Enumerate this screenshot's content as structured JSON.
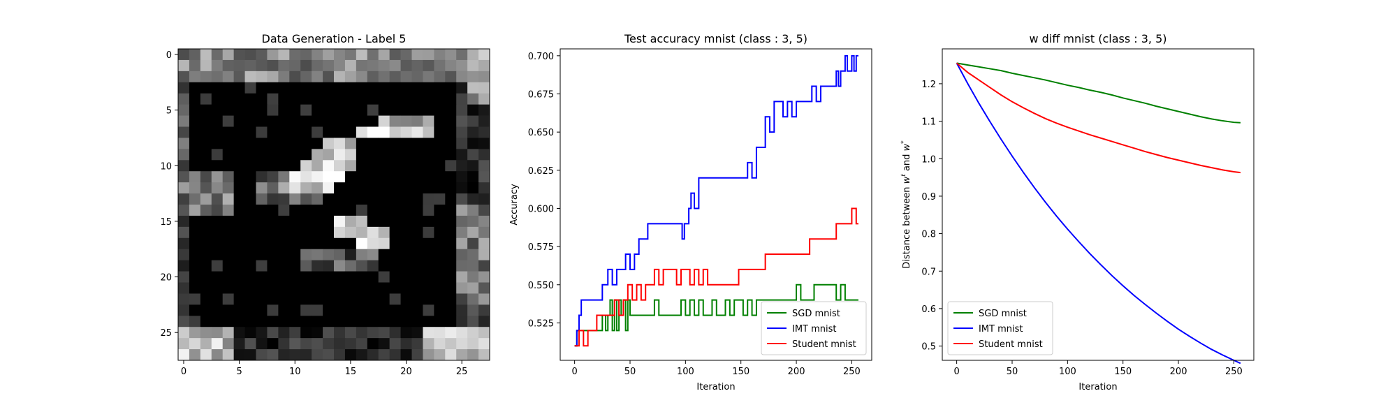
{
  "chart_data": [
    {
      "type": "heatmap",
      "title": "Data Generation - Label 5",
      "xlabel": "",
      "ylabel": "",
      "colormap": "gray",
      "size": [
        28,
        28
      ],
      "xlim": [
        -0.5,
        27.5
      ],
      "ylim": [
        27.5,
        -0.5
      ],
      "xticks": [
        0,
        5,
        10,
        15,
        20,
        25
      ],
      "yticks": [
        0,
        5,
        10,
        15,
        20,
        25
      ],
      "grid": false
    },
    {
      "type": "line",
      "title": "Test accuracy mnist (class : 3, 5)",
      "xlabel": "Iteration",
      "ylabel": "Accuracy",
      "xlim": [
        -13,
        268
      ],
      "ylim": [
        0.5005,
        0.7045
      ],
      "xticks": [
        0,
        50,
        100,
        150,
        200,
        250
      ],
      "yticks": [
        0.525,
        0.55,
        0.575,
        0.6,
        0.625,
        0.65,
        0.675,
        0.7
      ],
      "ytick_labels": [
        "0.525",
        "0.550",
        "0.575",
        "0.600",
        "0.625",
        "0.650",
        "0.675",
        "0.700"
      ],
      "legend": "lower-right",
      "grid": false,
      "series": [
        {
          "name": "SGD mnist",
          "color": "#008000",
          "x": [
            0,
            2,
            4,
            6,
            8,
            12,
            18,
            22,
            25,
            28,
            30,
            32,
            34,
            36,
            38,
            40,
            42,
            44,
            46,
            48,
            50,
            54,
            58,
            62,
            66,
            70,
            72,
            74,
            76,
            80,
            84,
            88,
            92,
            96,
            100,
            104,
            108,
            112,
            116,
            120,
            124,
            128,
            132,
            136,
            140,
            144,
            148,
            152,
            156,
            160,
            164,
            168,
            172,
            176,
            180,
            184,
            188,
            192,
            196,
            200,
            204,
            208,
            212,
            216,
            220,
            224,
            228,
            232,
            236,
            240,
            244,
            248,
            252,
            256
          ],
          "y": [
            0.51,
            0.52,
            0.52,
            0.52,
            0.52,
            0.52,
            0.52,
            0.52,
            0.53,
            0.52,
            0.53,
            0.54,
            0.52,
            0.54,
            0.52,
            0.54,
            0.53,
            0.54,
            0.52,
            0.54,
            0.53,
            0.53,
            0.53,
            0.53,
            0.53,
            0.53,
            0.54,
            0.54,
            0.53,
            0.53,
            0.53,
            0.53,
            0.53,
            0.54,
            0.53,
            0.54,
            0.53,
            0.54,
            0.53,
            0.53,
            0.54,
            0.53,
            0.53,
            0.54,
            0.53,
            0.54,
            0.54,
            0.53,
            0.54,
            0.53,
            0.54,
            0.54,
            0.54,
            0.54,
            0.54,
            0.54,
            0.54,
            0.54,
            0.54,
            0.55,
            0.54,
            0.54,
            0.54,
            0.55,
            0.55,
            0.55,
            0.55,
            0.55,
            0.54,
            0.55,
            0.54,
            0.54,
            0.54,
            0.54
          ]
        },
        {
          "name": "IMT mnist",
          "color": "#0000ff",
          "x": [
            0,
            2,
            4,
            6,
            10,
            15,
            20,
            25,
            30,
            34,
            38,
            42,
            46,
            50,
            54,
            58,
            62,
            66,
            70,
            75,
            80,
            85,
            90,
            95,
            97,
            99,
            101,
            103,
            105,
            108,
            112,
            118,
            125,
            132,
            140,
            146,
            150,
            156,
            160,
            164,
            168,
            172,
            176,
            180,
            184,
            188,
            192,
            196,
            200,
            205,
            210,
            214,
            218,
            222,
            226,
            230,
            234,
            236,
            238,
            240,
            242,
            244,
            246,
            248,
            250,
            252,
            254,
            256
          ],
          "y": [
            0.51,
            0.52,
            0.53,
            0.54,
            0.54,
            0.54,
            0.54,
            0.55,
            0.56,
            0.55,
            0.56,
            0.56,
            0.57,
            0.56,
            0.57,
            0.58,
            0.58,
            0.59,
            0.59,
            0.59,
            0.59,
            0.59,
            0.59,
            0.59,
            0.58,
            0.59,
            0.59,
            0.6,
            0.61,
            0.6,
            0.62,
            0.62,
            0.62,
            0.62,
            0.62,
            0.62,
            0.62,
            0.63,
            0.62,
            0.64,
            0.64,
            0.66,
            0.65,
            0.67,
            0.67,
            0.66,
            0.67,
            0.66,
            0.67,
            0.67,
            0.67,
            0.68,
            0.67,
            0.68,
            0.68,
            0.68,
            0.68,
            0.69,
            0.68,
            0.69,
            0.69,
            0.7,
            0.69,
            0.69,
            0.7,
            0.69,
            0.7,
            0.7
          ]
        },
        {
          "name": "Student mnist",
          "color": "#ff0000",
          "x": [
            0,
            2,
            4,
            8,
            12,
            16,
            20,
            24,
            28,
            32,
            36,
            40,
            44,
            48,
            52,
            56,
            60,
            64,
            68,
            72,
            76,
            80,
            84,
            88,
            92,
            96,
            100,
            104,
            108,
            112,
            116,
            120,
            124,
            128,
            132,
            136,
            140,
            144,
            148,
            152,
            156,
            160,
            164,
            168,
            172,
            176,
            180,
            184,
            188,
            192,
            196,
            200,
            204,
            208,
            212,
            216,
            220,
            224,
            228,
            232,
            236,
            240,
            244,
            248,
            250,
            252,
            254,
            256
          ],
          "y": [
            0.51,
            0.51,
            0.52,
            0.51,
            0.52,
            0.52,
            0.53,
            0.53,
            0.53,
            0.53,
            0.54,
            0.53,
            0.54,
            0.55,
            0.54,
            0.55,
            0.54,
            0.55,
            0.55,
            0.56,
            0.55,
            0.56,
            0.56,
            0.56,
            0.55,
            0.56,
            0.56,
            0.55,
            0.56,
            0.55,
            0.56,
            0.55,
            0.55,
            0.55,
            0.55,
            0.55,
            0.55,
            0.55,
            0.56,
            0.56,
            0.56,
            0.56,
            0.56,
            0.56,
            0.57,
            0.57,
            0.57,
            0.57,
            0.57,
            0.57,
            0.57,
            0.57,
            0.57,
            0.57,
            0.58,
            0.58,
            0.58,
            0.58,
            0.58,
            0.58,
            0.59,
            0.59,
            0.59,
            0.59,
            0.6,
            0.6,
            0.59,
            0.59
          ]
        }
      ]
    },
    {
      "type": "line",
      "title": "w diff mnist (class : 3, 5)",
      "xlabel": "Iteration",
      "ylabel": "Distance between w^t and w^*",
      "xlim": [
        -13,
        268
      ],
      "ylim": [
        0.462,
        1.293
      ],
      "xticks": [
        0,
        50,
        100,
        150,
        200,
        250
      ],
      "yticks": [
        0.5,
        0.6,
        0.7,
        0.8,
        0.9,
        1.0,
        1.1,
        1.2
      ],
      "ytick_labels": [
        "0.5",
        "0.6",
        "0.7",
        "0.8",
        "0.9",
        "1.0",
        "1.1",
        "1.2"
      ],
      "legend": "lower-left",
      "grid": false,
      "series": [
        {
          "name": "SGD mnist",
          "color": "#008000",
          "x": [
            0,
            10,
            20,
            30,
            40,
            50,
            60,
            70,
            80,
            90,
            100,
            110,
            120,
            130,
            140,
            150,
            160,
            170,
            180,
            190,
            200,
            210,
            220,
            230,
            240,
            250,
            256
          ],
          "y": [
            1.255,
            1.25,
            1.245,
            1.24,
            1.235,
            1.228,
            1.222,
            1.216,
            1.21,
            1.203,
            1.196,
            1.19,
            1.183,
            1.177,
            1.17,
            1.162,
            1.155,
            1.148,
            1.14,
            1.133,
            1.126,
            1.119,
            1.112,
            1.106,
            1.101,
            1.097,
            1.096
          ]
        },
        {
          "name": "IMT mnist",
          "color": "#0000ff",
          "x": [
            0,
            10,
            20,
            30,
            40,
            50,
            60,
            70,
            80,
            90,
            100,
            110,
            120,
            130,
            140,
            150,
            160,
            170,
            180,
            190,
            200,
            210,
            220,
            230,
            240,
            250,
            256
          ],
          "y": [
            1.255,
            1.2,
            1.148,
            1.099,
            1.052,
            1.007,
            0.964,
            0.923,
            0.884,
            0.847,
            0.812,
            0.779,
            0.747,
            0.717,
            0.688,
            0.661,
            0.635,
            0.611,
            0.588,
            0.566,
            0.545,
            0.526,
            0.508,
            0.491,
            0.476,
            0.462,
            0.454
          ]
        },
        {
          "name": "Student mnist",
          "color": "#ff0000",
          "x": [
            0,
            10,
            20,
            30,
            40,
            50,
            60,
            70,
            80,
            90,
            100,
            110,
            120,
            130,
            140,
            150,
            160,
            170,
            180,
            190,
            200,
            210,
            220,
            230,
            240,
            250,
            256
          ],
          "y": [
            1.255,
            1.23,
            1.21,
            1.19,
            1.17,
            1.152,
            1.136,
            1.121,
            1.107,
            1.095,
            1.084,
            1.074,
            1.064,
            1.055,
            1.046,
            1.037,
            1.028,
            1.019,
            1.011,
            1.003,
            0.996,
            0.989,
            0.982,
            0.976,
            0.97,
            0.965,
            0.963
          ]
        }
      ]
    }
  ]
}
